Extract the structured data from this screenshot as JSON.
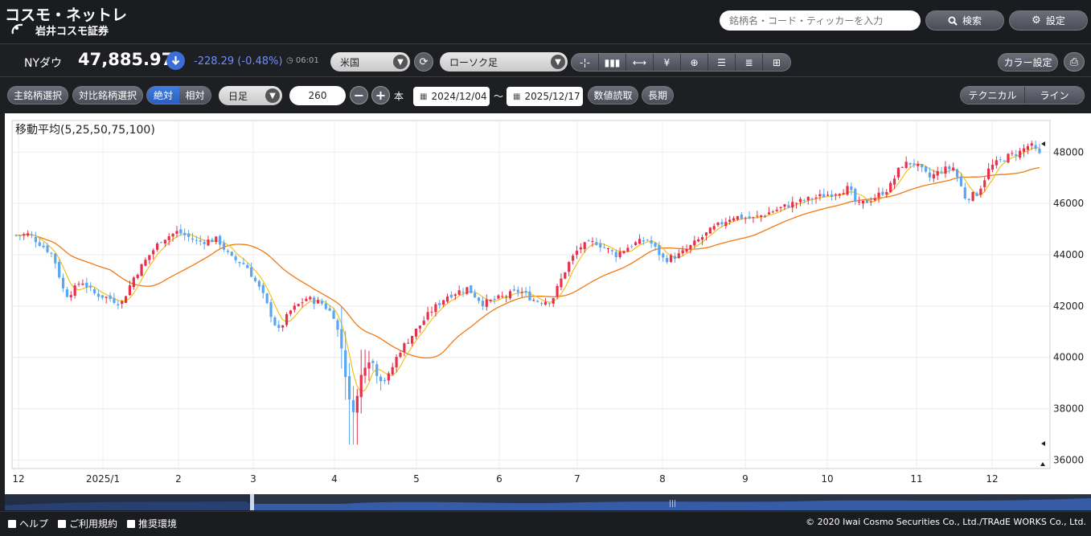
{
  "brand": {
    "title": "コスモ・ネットレ",
    "subtitle": "岩井コスモ証券"
  },
  "header": {
    "search_placeholder": "銘柄名・コード・ティッカーを入力",
    "search_label": "検索",
    "settings_label": "設定"
  },
  "quote": {
    "symbol": "NYダウ",
    "price": "47,885.97",
    "change": "-228.29 (-0.48%)",
    "time": "06:01",
    "market": "米国",
    "chart_style": "ローソク足",
    "color_settings": "カラー設定"
  },
  "controls": {
    "main_symbol": "主銘柄選択",
    "compare_symbol": "対比銘柄選択",
    "absolute": "絶対",
    "relative": "相対",
    "period": "日足",
    "count": "260",
    "count_unit": "本",
    "start_date": "2024/12/04",
    "range_sep": "〜",
    "end_date": "2025/12/17",
    "read_values": "数値読取",
    "long_term": "長期",
    "technical": "テクニカル",
    "line": "ライン"
  },
  "colors": {
    "up": "#e8304d",
    "down": "#5aa6f0",
    "ma5": "#f2c21b",
    "ma25": "#f07a14",
    "accent": "#3f7de0"
  },
  "chart_data": {
    "type": "candlestick",
    "title": "移動平均(5,25,50,75,100)",
    "xlabel": "",
    "ylabel": "",
    "ylim": [
      35700,
      49200
    ],
    "yticks": [
      36000,
      38000,
      40000,
      42000,
      44000,
      46000,
      48000
    ],
    "ytick_labels": [
      "36000",
      "38000",
      "40000",
      "42000",
      "44000",
      "46000",
      "48000"
    ],
    "month_labels": [
      "12",
      "2025/1",
      "2",
      "3",
      "4",
      "5",
      "6",
      "7",
      "8",
      "9",
      "10",
      "11",
      "12"
    ],
    "grid": true,
    "series_close_monthly": {
      "months": [
        "2024-12",
        "2025-01",
        "2025-02",
        "2025-03",
        "2025-04",
        "2025-05",
        "2025-06",
        "2025-07",
        "2025-08",
        "2025-09",
        "2025-10",
        "2025-11",
        "2025-12"
      ],
      "values": [
        44700,
        43200,
        44900,
        42800,
        38500,
        41500,
        42500,
        44300,
        44200,
        45600,
        47000,
        46800,
        47885
      ]
    },
    "ma_series": [
      {
        "name": "5",
        "color": "#f2c21b"
      },
      {
        "name": "25",
        "color": "#f07a14"
      }
    ],
    "last_close": 47885.97
  },
  "footer": {
    "help": "ヘルプ",
    "terms": "ご利用規約",
    "env": "推奨環境",
    "copyright": "© 2020 Iwai Cosmo Securities Co., Ltd./TRAdE WORKS Co., Ltd."
  }
}
